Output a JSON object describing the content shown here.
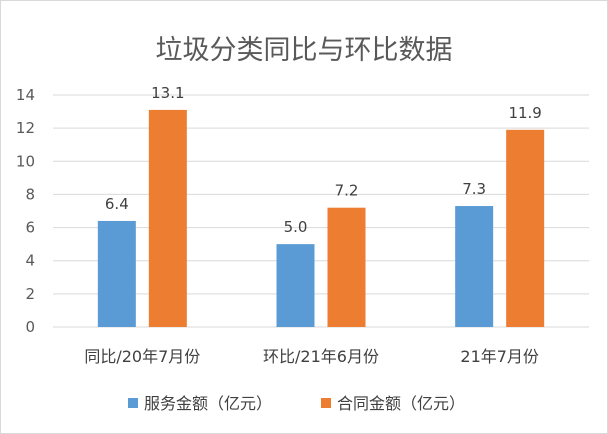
{
  "chart_data": {
    "type": "bar",
    "title": "垃圾分类同比与环比数据",
    "categories": [
      "同比/20年7月份",
      "环比/21年6月份",
      "21年7月份"
    ],
    "series": [
      {
        "name": "服务金额（亿元）",
        "values": [
          6.4,
          5.0,
          7.3
        ],
        "labels": [
          "6.4",
          "5.0",
          "7.3"
        ],
        "color": "#5b9bd5"
      },
      {
        "name": "合同金额（亿元）",
        "values": [
          13.1,
          7.2,
          11.9
        ],
        "labels": [
          "13.1",
          "7.2",
          "11.9"
        ],
        "color": "#ed7d31"
      }
    ],
    "yticks": [
      "0",
      "2",
      "4",
      "6",
      "8",
      "10",
      "12",
      "14"
    ],
    "ylim": [
      0,
      14
    ],
    "grid": true,
    "legend": "bottom"
  }
}
